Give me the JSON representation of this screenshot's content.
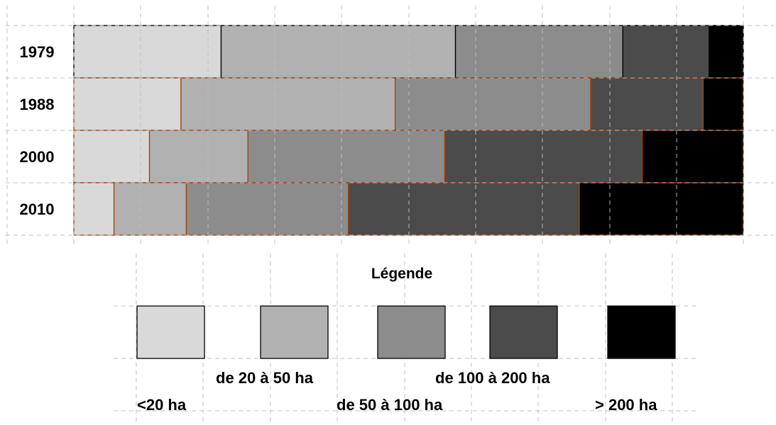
{
  "chart_data": {
    "type": "bar",
    "stacked": true,
    "orientation": "horizontal",
    "normalized_percent": true,
    "categories": [
      "1979",
      "1988",
      "2000",
      "2010"
    ],
    "series": [
      {
        "name": "<20 ha",
        "color": "#d9d9d9",
        "values": [
          22,
          16,
          11.3,
          6
        ]
      },
      {
        "name": "de 20 à 50 ha",
        "color": "#b1b1b1",
        "values": [
          35,
          32,
          14.7,
          10.8
        ]
      },
      {
        "name": "de 50 à 100 ha",
        "color": "#8c8c8c",
        "values": [
          25,
          29.2,
          29.4,
          24.2
        ]
      },
      {
        "name": "de 100 à 200 ha",
        "color": "#4b4b4b",
        "values": [
          12.9,
          16.8,
          29.5,
          34.5
        ]
      },
      {
        "name": "> 200 ha",
        "color": "#000000",
        "values": [
          5.1,
          6,
          15.1,
          24.5
        ]
      }
    ],
    "legend": {
      "title": "Légende",
      "position": "bottom"
    },
    "grid": true,
    "xlim": [
      0,
      100
    ]
  }
}
